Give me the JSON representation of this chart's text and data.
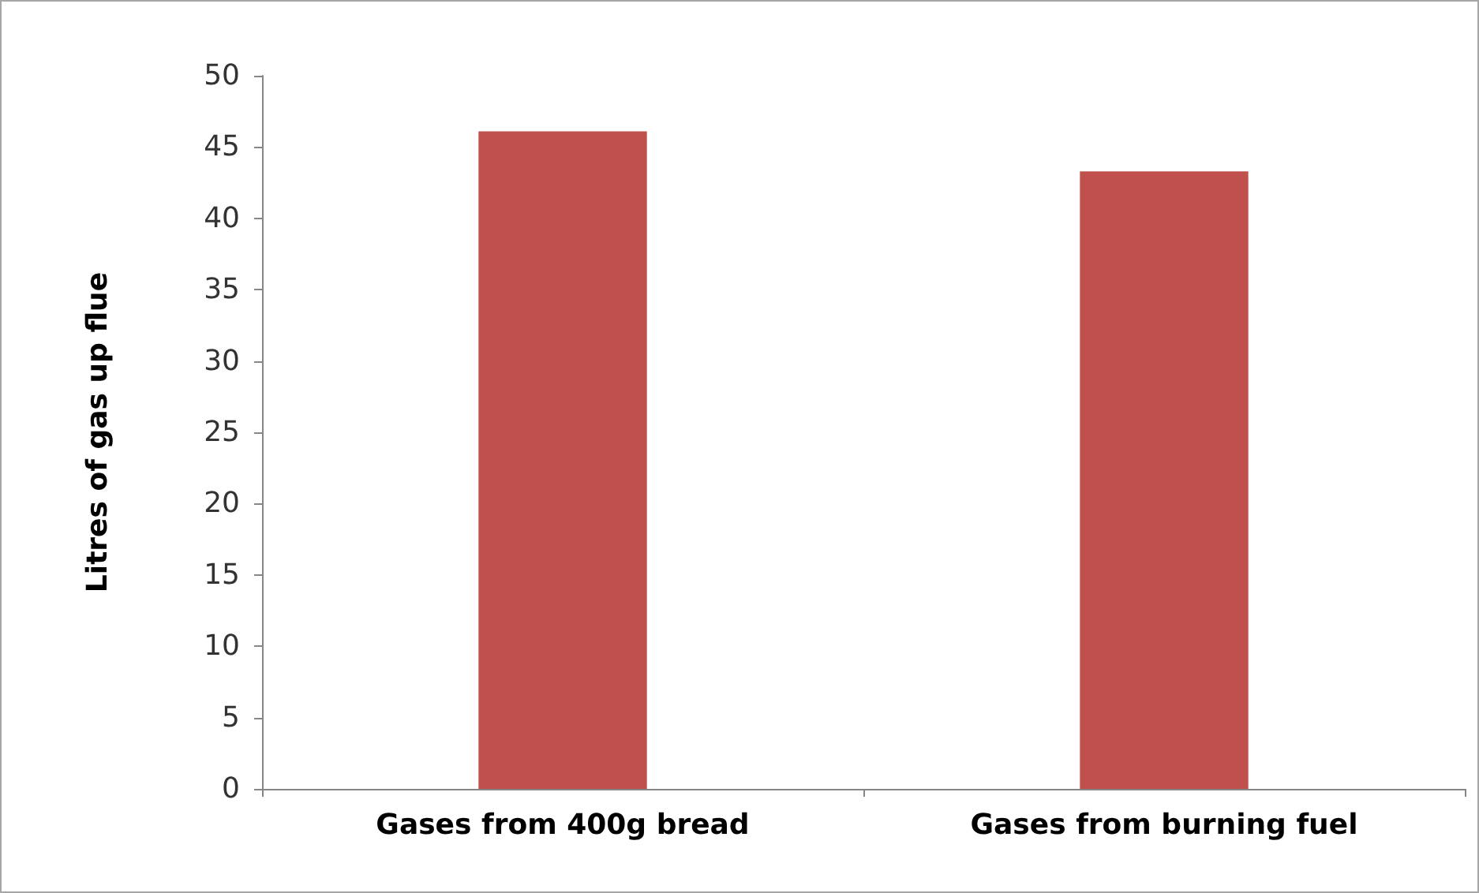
{
  "chart_data": {
    "type": "bar",
    "ylabel": "Litres of gas up flue",
    "categories": [
      "Gases from 400g bread",
      "Gases from burning fuel"
    ],
    "values": [
      46.1,
      43.3
    ],
    "color": "#c0504d",
    "ylim": [
      0,
      50
    ],
    "yticks": [
      0,
      5,
      10,
      15,
      20,
      25,
      30,
      35,
      40,
      45,
      50
    ],
    "grid": false
  }
}
